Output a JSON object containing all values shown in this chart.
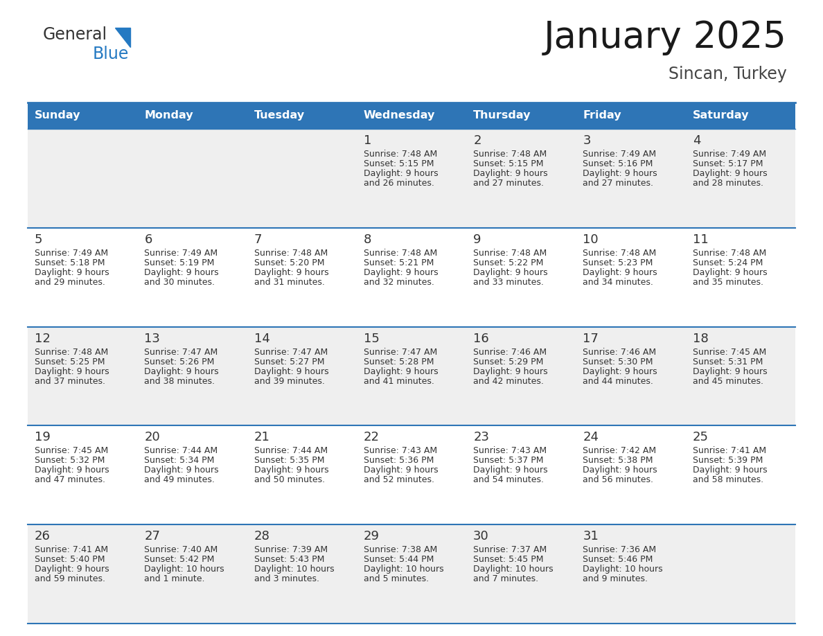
{
  "title": "January 2025",
  "subtitle": "Sincan, Turkey",
  "header_bg": "#2E75B6",
  "header_text_color": "#FFFFFF",
  "cell_bg_even": "#EFEFEF",
  "cell_bg_odd": "#FFFFFF",
  "border_color": "#2E75B6",
  "text_color": "#333333",
  "day_headers": [
    "Sunday",
    "Monday",
    "Tuesday",
    "Wednesday",
    "Thursday",
    "Friday",
    "Saturday"
  ],
  "calendar": [
    [
      {
        "day": "",
        "sunrise": "",
        "sunset": "",
        "daylight_line1": "",
        "daylight_line2": ""
      },
      {
        "day": "",
        "sunrise": "",
        "sunset": "",
        "daylight_line1": "",
        "daylight_line2": ""
      },
      {
        "day": "",
        "sunrise": "",
        "sunset": "",
        "daylight_line1": "",
        "daylight_line2": ""
      },
      {
        "day": "1",
        "sunrise": "Sunrise: 7:48 AM",
        "sunset": "Sunset: 5:15 PM",
        "daylight_line1": "Daylight: 9 hours",
        "daylight_line2": "and 26 minutes."
      },
      {
        "day": "2",
        "sunrise": "Sunrise: 7:48 AM",
        "sunset": "Sunset: 5:15 PM",
        "daylight_line1": "Daylight: 9 hours",
        "daylight_line2": "and 27 minutes."
      },
      {
        "day": "3",
        "sunrise": "Sunrise: 7:49 AM",
        "sunset": "Sunset: 5:16 PM",
        "daylight_line1": "Daylight: 9 hours",
        "daylight_line2": "and 27 minutes."
      },
      {
        "day": "4",
        "sunrise": "Sunrise: 7:49 AM",
        "sunset": "Sunset: 5:17 PM",
        "daylight_line1": "Daylight: 9 hours",
        "daylight_line2": "and 28 minutes."
      }
    ],
    [
      {
        "day": "5",
        "sunrise": "Sunrise: 7:49 AM",
        "sunset": "Sunset: 5:18 PM",
        "daylight_line1": "Daylight: 9 hours",
        "daylight_line2": "and 29 minutes."
      },
      {
        "day": "6",
        "sunrise": "Sunrise: 7:49 AM",
        "sunset": "Sunset: 5:19 PM",
        "daylight_line1": "Daylight: 9 hours",
        "daylight_line2": "and 30 minutes."
      },
      {
        "day": "7",
        "sunrise": "Sunrise: 7:48 AM",
        "sunset": "Sunset: 5:20 PM",
        "daylight_line1": "Daylight: 9 hours",
        "daylight_line2": "and 31 minutes."
      },
      {
        "day": "8",
        "sunrise": "Sunrise: 7:48 AM",
        "sunset": "Sunset: 5:21 PM",
        "daylight_line1": "Daylight: 9 hours",
        "daylight_line2": "and 32 minutes."
      },
      {
        "day": "9",
        "sunrise": "Sunrise: 7:48 AM",
        "sunset": "Sunset: 5:22 PM",
        "daylight_line1": "Daylight: 9 hours",
        "daylight_line2": "and 33 minutes."
      },
      {
        "day": "10",
        "sunrise": "Sunrise: 7:48 AM",
        "sunset": "Sunset: 5:23 PM",
        "daylight_line1": "Daylight: 9 hours",
        "daylight_line2": "and 34 minutes."
      },
      {
        "day": "11",
        "sunrise": "Sunrise: 7:48 AM",
        "sunset": "Sunset: 5:24 PM",
        "daylight_line1": "Daylight: 9 hours",
        "daylight_line2": "and 35 minutes."
      }
    ],
    [
      {
        "day": "12",
        "sunrise": "Sunrise: 7:48 AM",
        "sunset": "Sunset: 5:25 PM",
        "daylight_line1": "Daylight: 9 hours",
        "daylight_line2": "and 37 minutes."
      },
      {
        "day": "13",
        "sunrise": "Sunrise: 7:47 AM",
        "sunset": "Sunset: 5:26 PM",
        "daylight_line1": "Daylight: 9 hours",
        "daylight_line2": "and 38 minutes."
      },
      {
        "day": "14",
        "sunrise": "Sunrise: 7:47 AM",
        "sunset": "Sunset: 5:27 PM",
        "daylight_line1": "Daylight: 9 hours",
        "daylight_line2": "and 39 minutes."
      },
      {
        "day": "15",
        "sunrise": "Sunrise: 7:47 AM",
        "sunset": "Sunset: 5:28 PM",
        "daylight_line1": "Daylight: 9 hours",
        "daylight_line2": "and 41 minutes."
      },
      {
        "day": "16",
        "sunrise": "Sunrise: 7:46 AM",
        "sunset": "Sunset: 5:29 PM",
        "daylight_line1": "Daylight: 9 hours",
        "daylight_line2": "and 42 minutes."
      },
      {
        "day": "17",
        "sunrise": "Sunrise: 7:46 AM",
        "sunset": "Sunset: 5:30 PM",
        "daylight_line1": "Daylight: 9 hours",
        "daylight_line2": "and 44 minutes."
      },
      {
        "day": "18",
        "sunrise": "Sunrise: 7:45 AM",
        "sunset": "Sunset: 5:31 PM",
        "daylight_line1": "Daylight: 9 hours",
        "daylight_line2": "and 45 minutes."
      }
    ],
    [
      {
        "day": "19",
        "sunrise": "Sunrise: 7:45 AM",
        "sunset": "Sunset: 5:32 PM",
        "daylight_line1": "Daylight: 9 hours",
        "daylight_line2": "and 47 minutes."
      },
      {
        "day": "20",
        "sunrise": "Sunrise: 7:44 AM",
        "sunset": "Sunset: 5:34 PM",
        "daylight_line1": "Daylight: 9 hours",
        "daylight_line2": "and 49 minutes."
      },
      {
        "day": "21",
        "sunrise": "Sunrise: 7:44 AM",
        "sunset": "Sunset: 5:35 PM",
        "daylight_line1": "Daylight: 9 hours",
        "daylight_line2": "and 50 minutes."
      },
      {
        "day": "22",
        "sunrise": "Sunrise: 7:43 AM",
        "sunset": "Sunset: 5:36 PM",
        "daylight_line1": "Daylight: 9 hours",
        "daylight_line2": "and 52 minutes."
      },
      {
        "day": "23",
        "sunrise": "Sunrise: 7:43 AM",
        "sunset": "Sunset: 5:37 PM",
        "daylight_line1": "Daylight: 9 hours",
        "daylight_line2": "and 54 minutes."
      },
      {
        "day": "24",
        "sunrise": "Sunrise: 7:42 AM",
        "sunset": "Sunset: 5:38 PM",
        "daylight_line1": "Daylight: 9 hours",
        "daylight_line2": "and 56 minutes."
      },
      {
        "day": "25",
        "sunrise": "Sunrise: 7:41 AM",
        "sunset": "Sunset: 5:39 PM",
        "daylight_line1": "Daylight: 9 hours",
        "daylight_line2": "and 58 minutes."
      }
    ],
    [
      {
        "day": "26",
        "sunrise": "Sunrise: 7:41 AM",
        "sunset": "Sunset: 5:40 PM",
        "daylight_line1": "Daylight: 9 hours",
        "daylight_line2": "and 59 minutes."
      },
      {
        "day": "27",
        "sunrise": "Sunrise: 7:40 AM",
        "sunset": "Sunset: 5:42 PM",
        "daylight_line1": "Daylight: 10 hours",
        "daylight_line2": "and 1 minute."
      },
      {
        "day": "28",
        "sunrise": "Sunrise: 7:39 AM",
        "sunset": "Sunset: 5:43 PM",
        "daylight_line1": "Daylight: 10 hours",
        "daylight_line2": "and 3 minutes."
      },
      {
        "day": "29",
        "sunrise": "Sunrise: 7:38 AM",
        "sunset": "Sunset: 5:44 PM",
        "daylight_line1": "Daylight: 10 hours",
        "daylight_line2": "and 5 minutes."
      },
      {
        "day": "30",
        "sunrise": "Sunrise: 7:37 AM",
        "sunset": "Sunset: 5:45 PM",
        "daylight_line1": "Daylight: 10 hours",
        "daylight_line2": "and 7 minutes."
      },
      {
        "day": "31",
        "sunrise": "Sunrise: 7:36 AM",
        "sunset": "Sunset: 5:46 PM",
        "daylight_line1": "Daylight: 10 hours",
        "daylight_line2": "and 9 minutes."
      },
      {
        "day": "",
        "sunrise": "",
        "sunset": "",
        "daylight_line1": "",
        "daylight_line2": ""
      }
    ]
  ],
  "logo_color_general": "#333333",
  "logo_color_blue": "#2479C2",
  "fig_width": 11.88,
  "fig_height": 9.18,
  "dpi": 100
}
